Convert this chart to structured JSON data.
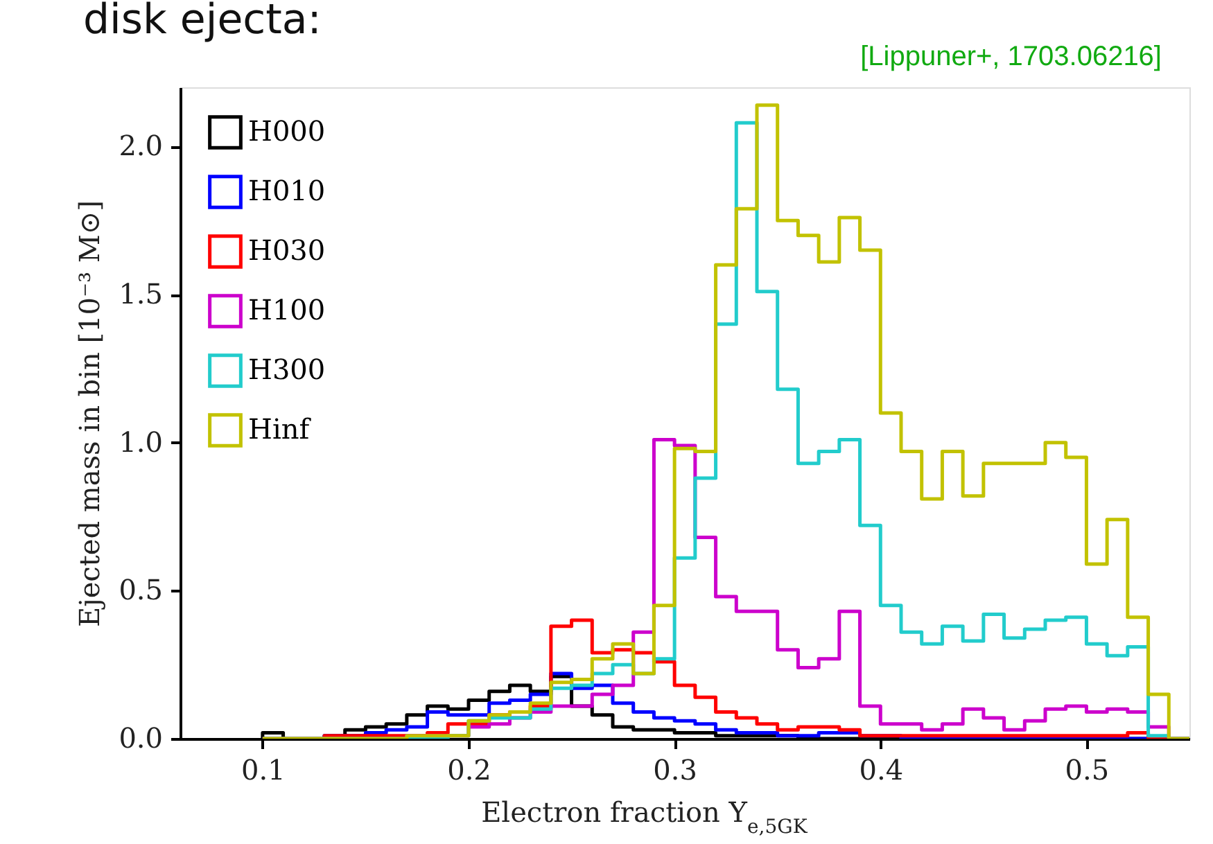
{
  "chart_data": {
    "type": "histogram",
    "xlabel": "Electron fraction Y$_{e,5GK}$",
    "ylabel": "Ejected mass in bin [10⁻³ M⊙]",
    "annotations": [
      "disk ejecta:",
      "[Lippuner+, 1703.06216]"
    ],
    "bins": [
      0.1,
      0.11,
      0.12,
      0.13,
      0.14,
      0.15,
      0.16,
      0.17,
      0.18,
      0.19,
      0.2,
      0.21,
      0.22,
      0.23,
      0.24,
      0.25,
      0.26,
      0.27,
      0.28,
      0.29,
      0.3,
      0.31,
      0.32,
      0.33,
      0.34,
      0.35,
      0.36,
      0.37,
      0.38,
      0.39,
      0.4,
      0.41,
      0.42,
      0.43,
      0.44,
      0.45,
      0.46,
      0.47,
      0.48,
      0.49,
      0.5,
      0.51,
      0.52,
      0.53,
      0.54,
      0.55
    ],
    "series": [
      {
        "name": "H000",
        "color": "#000000",
        "values": [
          0.02,
          0,
          0,
          0.01,
          0.03,
          0.04,
          0.05,
          0.08,
          0.11,
          0.1,
          0.13,
          0.16,
          0.18,
          0.16,
          0.21,
          0.11,
          0.08,
          0.04,
          0.03,
          0.03,
          0.02,
          0.02,
          0.01,
          0.01,
          0.01,
          0.01,
          0,
          0,
          0,
          0,
          0,
          0,
          0,
          0,
          0,
          0,
          0,
          0,
          0,
          0,
          0,
          0,
          0,
          0,
          0
        ]
      },
      {
        "name": "H010",
        "color": "#0000ff",
        "values": [
          0,
          0,
          0,
          0.01,
          0.01,
          0.02,
          0.03,
          0.04,
          0.09,
          0.08,
          0.08,
          0.12,
          0.13,
          0.15,
          0.22,
          0.17,
          0.18,
          0.12,
          0.09,
          0.07,
          0.06,
          0.05,
          0.03,
          0.02,
          0.02,
          0.01,
          0.01,
          0.02,
          0.02,
          0.01,
          0.01,
          0,
          0,
          0,
          0,
          0,
          0,
          0,
          0,
          0,
          0,
          0,
          0,
          0,
          0
        ]
      },
      {
        "name": "H030",
        "color": "#ff0000",
        "values": [
          0,
          0,
          0,
          0.01,
          0.01,
          0.01,
          0.01,
          0.01,
          0.02,
          0.05,
          0.05,
          0.08,
          0.09,
          0.11,
          0.38,
          0.4,
          0.29,
          0.3,
          0.29,
          0.26,
          0.18,
          0.14,
          0.09,
          0.07,
          0.05,
          0.03,
          0.04,
          0.04,
          0.03,
          0.01,
          0.01,
          0.01,
          0.01,
          0.01,
          0.01,
          0.01,
          0.01,
          0.01,
          0.01,
          0.01,
          0.01,
          0.01,
          0.02,
          0,
          0
        ]
      },
      {
        "name": "H100",
        "color": "#cc00cc",
        "values": [
          0,
          0,
          0,
          0,
          0,
          0,
          0,
          0.01,
          0.01,
          0.01,
          0.04,
          0.05,
          0.07,
          0.09,
          0.11,
          0.11,
          0.15,
          0.18,
          0.36,
          1.01,
          0.99,
          0.68,
          0.48,
          0.43,
          0.43,
          0.3,
          0.24,
          0.27,
          0.43,
          0.11,
          0.05,
          0.05,
          0.03,
          0.05,
          0.1,
          0.07,
          0.03,
          0.06,
          0.1,
          0.11,
          0.09,
          0.1,
          0.09,
          0.04,
          0
        ]
      },
      {
        "name": "H300",
        "color": "#22cccc",
        "values": [
          0,
          0,
          0,
          0,
          0,
          0,
          0,
          0,
          0,
          0.01,
          0.06,
          0.07,
          0.07,
          0.1,
          0.17,
          0.18,
          0.22,
          0.25,
          0.22,
          0.27,
          0.61,
          0.88,
          1.4,
          2.08,
          1.51,
          1.18,
          0.93,
          0.97,
          1.01,
          0.72,
          0.45,
          0.36,
          0.32,
          0.38,
          0.33,
          0.42,
          0.34,
          0.37,
          0.4,
          0.41,
          0.32,
          0.28,
          0.31,
          0.01,
          0
        ]
      },
      {
        "name": "Hinf",
        "color": "#c2c200",
        "values": [
          0,
          0,
          0,
          0,
          0,
          0,
          0,
          0.01,
          0.01,
          0.01,
          0.06,
          0.08,
          0.09,
          0.12,
          0.19,
          0.2,
          0.27,
          0.32,
          0.22,
          0.45,
          0.98,
          0.97,
          1.6,
          1.79,
          2.14,
          1.75,
          1.7,
          1.61,
          1.76,
          1.65,
          1.1,
          0.97,
          0.81,
          0.97,
          0.82,
          0.93,
          0.93,
          0.93,
          1.0,
          0.95,
          0.59,
          0.74,
          0.41,
          0.15,
          0
        ]
      }
    ],
    "xlim": [
      0.06,
      0.55
    ],
    "ylim": [
      0,
      2.2
    ],
    "xticks": [
      0.1,
      0.2,
      0.3,
      0.4,
      0.5
    ],
    "yticks": [
      {
        "value": 0,
        "label": "0.0"
      },
      0.5,
      {
        "value": 1,
        "label": "1.0"
      },
      1.5,
      {
        "value": 2,
        "label": "2.0"
      }
    ],
    "grid": false,
    "legend": "top left"
  }
}
